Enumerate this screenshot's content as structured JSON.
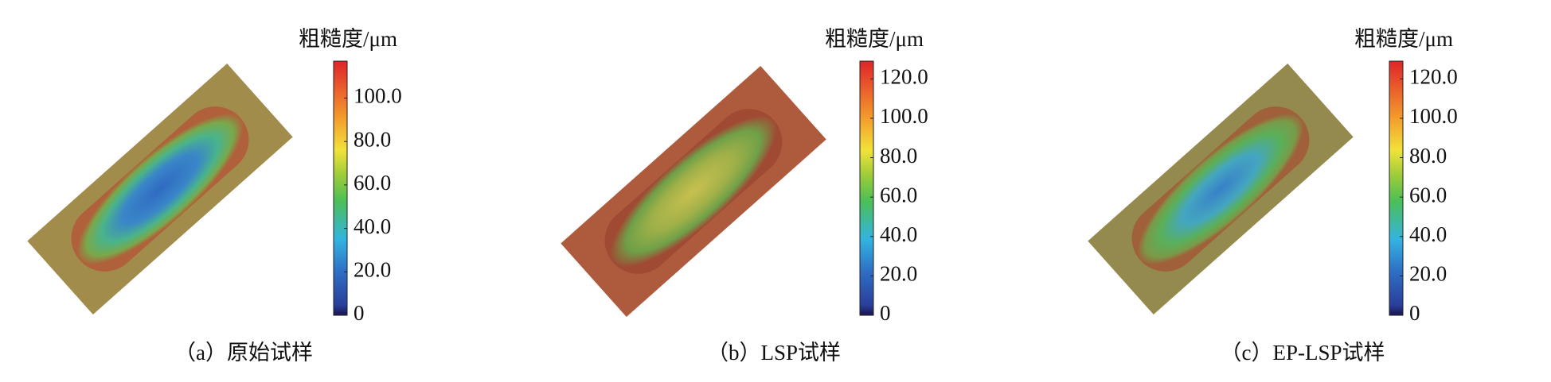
{
  "panels": [
    {
      "caption": "（a）原始试样",
      "colorbar": {
        "title": "粗糙度/μm",
        "lim": [
          0,
          117
        ],
        "ticks": [
          0,
          {
            "value": 20,
            "label": "20.0"
          },
          {
            "value": 40,
            "label": "40.0"
          },
          {
            "value": 60,
            "label": "60.0"
          },
          {
            "value": 80,
            "label": "80.0"
          },
          {
            "value": 100,
            "label": "100.0"
          }
        ]
      }
    },
    {
      "caption": "（b）LSP试样",
      "colorbar": {
        "title": "粗糙度/μm",
        "lim": [
          0,
          129
        ],
        "ticks": [
          0,
          {
            "value": 20,
            "label": "20.0"
          },
          {
            "value": 40,
            "label": "40.0"
          },
          {
            "value": 60,
            "label": "60.0"
          },
          {
            "value": 80,
            "label": "80.0"
          },
          {
            "value": 100,
            "label": "100.0"
          },
          {
            "value": 120,
            "label": "120.0"
          }
        ]
      }
    },
    {
      "caption": "（c）EP-LSP试样",
      "colorbar": {
        "title": "粗糙度/μm",
        "lim": [
          0,
          129
        ],
        "ticks": [
          0,
          {
            "value": 20,
            "label": "20.0"
          },
          {
            "value": 40,
            "label": "40.0"
          },
          {
            "value": 60,
            "label": "60.0"
          },
          {
            "value": 80,
            "label": "80.0"
          },
          {
            "value": 100,
            "label": "100.0"
          },
          {
            "value": 120,
            "label": "120.0"
          }
        ]
      }
    }
  ]
}
